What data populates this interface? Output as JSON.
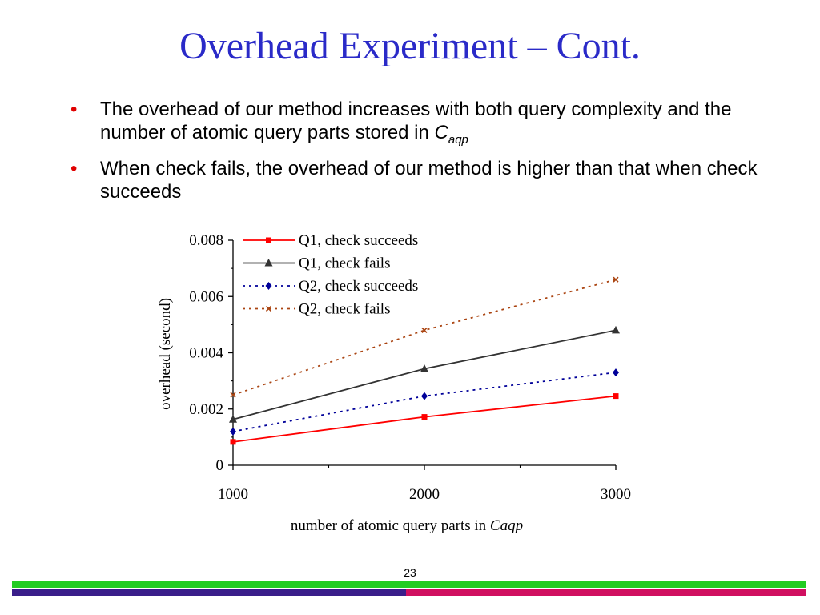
{
  "slide": {
    "title": "Overhead Experiment – Cont.",
    "bullet_marker": "•",
    "bullets": [
      {
        "text": "The overhead of our method increases with both query complexity and the number of atomic query parts stored in ",
        "symbol": "C",
        "subscript": "aqp"
      },
      {
        "text": "When check fails, the overhead of our method is higher than that when check succeeds"
      }
    ],
    "page_number": "23"
  },
  "chart_data": {
    "type": "line",
    "x": [
      1000,
      2000,
      3000
    ],
    "xticks": [
      "1000",
      "2000",
      "3000"
    ],
    "yticks": [
      "0",
      "0.002",
      "0.004",
      "0.006",
      "0.008"
    ],
    "ylim": [
      0,
      0.008
    ],
    "xlim": [
      1000,
      3000
    ],
    "xlabel": "number of atomic query parts in ",
    "xlabel_italic": "Caqp",
    "ylabel": "overhead (second)",
    "legend_position": "top-left",
    "grid": false,
    "series": [
      {
        "name": "Q1, check succeeds",
        "values": [
          0.00083,
          0.00172,
          0.00246
        ],
        "color": "#ff0000",
        "dash": "solid",
        "marker": "square"
      },
      {
        "name": "Q1, check fails",
        "values": [
          0.00163,
          0.00343,
          0.0048
        ],
        "color": "#333333",
        "dash": "solid",
        "marker": "triangle"
      },
      {
        "name": "Q2, check succeeds",
        "values": [
          0.0012,
          0.00246,
          0.0033
        ],
        "color": "#000099",
        "dash": "dotted",
        "marker": "diamond"
      },
      {
        "name": "Q2, check fails",
        "values": [
          0.0025,
          0.0048,
          0.0066
        ],
        "color": "#aa4411",
        "dash": "dotted",
        "marker": "x"
      }
    ]
  }
}
